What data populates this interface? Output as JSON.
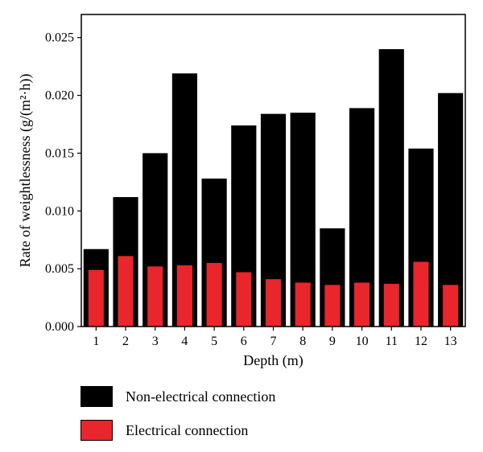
{
  "chart_data": {
    "type": "bar",
    "title": "",
    "xlabel": "Depth (m)",
    "ylabel": "Rate of weightlessness (g/(m²·h))",
    "categories": [
      "1",
      "2",
      "3",
      "4",
      "5",
      "6",
      "7",
      "8",
      "9",
      "10",
      "11",
      "12",
      "13"
    ],
    "ylim": [
      0,
      0.027
    ],
    "yticks": [
      "0.000",
      "0.005",
      "0.010",
      "0.015",
      "0.020",
      "0.025"
    ],
    "grid": false,
    "legend_position": "bottom",
    "series": [
      {
        "name": "Non-electrical connection",
        "color": "#000000",
        "values": [
          0.0067,
          0.0112,
          0.015,
          0.0219,
          0.0128,
          0.0174,
          0.0184,
          0.0185,
          0.0085,
          0.0189,
          0.024,
          0.0154,
          0.0202
        ]
      },
      {
        "name": "Electrical connection",
        "color": "#e8262b",
        "values": [
          0.0049,
          0.0061,
          0.0052,
          0.0053,
          0.0055,
          0.0047,
          0.0041,
          0.0038,
          0.0036,
          0.0038,
          0.0037,
          0.0056,
          0.0036
        ]
      }
    ]
  }
}
